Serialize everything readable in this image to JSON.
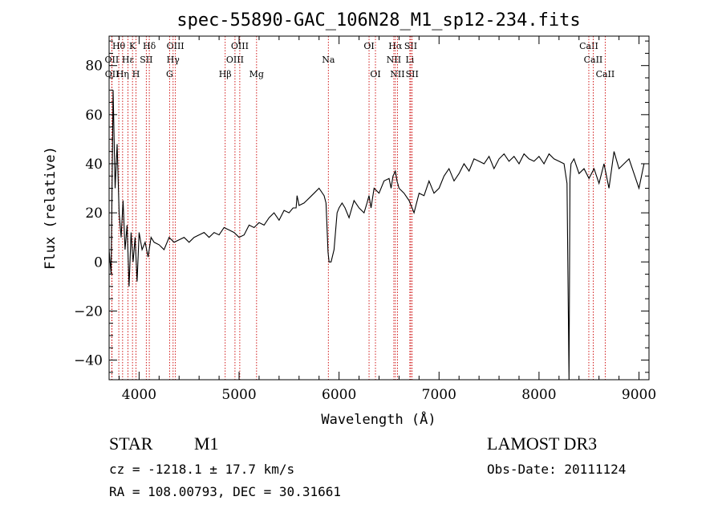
{
  "chart_data": {
    "type": "line",
    "title": "spec-55890-GAC_106N28_M1_sp12-234.fits",
    "xlabel": "Wavelength (Å)",
    "ylabel": "Flux (relative)",
    "xlim": [
      3700,
      9100
    ],
    "ylim": [
      -48,
      92
    ],
    "xticks": [
      4000,
      5000,
      6000,
      7000,
      8000,
      9000
    ],
    "yticks": [
      -40,
      -20,
      0,
      20,
      40,
      60,
      80
    ],
    "grid": false,
    "legend": "none",
    "series": [
      {
        "x": [
          3700,
          3720,
          3740,
          3760,
          3780,
          3800,
          3820,
          3840,
          3860,
          3880,
          3900,
          3920,
          3940,
          3960,
          3980,
          4000,
          4030,
          4060,
          4090,
          4120,
          4150,
          4200,
          4250,
          4300,
          4350,
          4400,
          4450,
          4500,
          4550,
          4600,
          4650,
          4700,
          4750,
          4800,
          4850,
          4900,
          4950,
          5000,
          5050,
          5100,
          5150,
          5200,
          5250,
          5300,
          5350,
          5400,
          5450,
          5500,
          5540,
          5570,
          5580,
          5600,
          5650,
          5700,
          5750,
          5800,
          5850,
          5870,
          5890,
          5900,
          5920,
          5950,
          5980,
          6000,
          6030,
          6060,
          6100,
          6150,
          6200,
          6250,
          6280,
          6300,
          6320,
          6350,
          6400,
          6450,
          6500,
          6520,
          6540,
          6563,
          6580,
          6600,
          6650,
          6700,
          6750,
          6800,
          6850,
          6900,
          6950,
          7000,
          7050,
          7100,
          7150,
          7200,
          7250,
          7300,
          7350,
          7400,
          7450,
          7500,
          7550,
          7600,
          7650,
          7700,
          7750,
          7800,
          7850,
          7900,
          7950,
          8000,
          8050,
          8100,
          8150,
          8200,
          8250,
          8280,
          8300,
          8310,
          8320,
          8350,
          8400,
          8450,
          8500,
          8550,
          8600,
          8650,
          8700,
          8750,
          8800,
          8850,
          8900,
          8950,
          9000,
          9050
        ],
        "y": [
          5,
          -5,
          70,
          30,
          48,
          20,
          10,
          25,
          5,
          15,
          -10,
          12,
          0,
          10,
          -8,
          12,
          5,
          8,
          2,
          10,
          8,
          7,
          5,
          10,
          8,
          9,
          10,
          8,
          10,
          11,
          12,
          10,
          12,
          11,
          14,
          13,
          12,
          10,
          11,
          15,
          14,
          16,
          15,
          18,
          20,
          17,
          21,
          20,
          22,
          22,
          27,
          23,
          24,
          26,
          28,
          30,
          27,
          24,
          4,
          0,
          0,
          5,
          20,
          22,
          24,
          22,
          18,
          25,
          22,
          20,
          24,
          27,
          22,
          30,
          28,
          33,
          34,
          30,
          35,
          37,
          33,
          30,
          28,
          25,
          20,
          28,
          27,
          33,
          28,
          30,
          35,
          38,
          33,
          36,
          40,
          37,
          42,
          41,
          40,
          43,
          38,
          42,
          44,
          41,
          43,
          40,
          44,
          42,
          41,
          43,
          40,
          44,
          42,
          41,
          40,
          32,
          -48,
          34,
          40,
          42,
          36,
          38,
          34,
          38,
          32,
          40,
          30,
          45,
          38,
          40,
          42,
          36,
          30,
          40
        ]
      }
    ],
    "line_markers": [
      {
        "label": "Hθ",
        "x": 3797,
        "row": 0
      },
      {
        "label": "OII",
        "x": 3727,
        "row": 1
      },
      {
        "label": "OII",
        "x": 3729,
        "row": 2
      },
      {
        "label": "Hε",
        "x": 3889,
        "row": 1
      },
      {
        "label": "Hη",
        "x": 3835,
        "row": 2
      },
      {
        "label": "K",
        "x": 3934,
        "row": 0
      },
      {
        "label": "H",
        "x": 3969,
        "row": 2
      },
      {
        "label": "SII",
        "x": 4072,
        "row": 1
      },
      {
        "label": "Hδ",
        "x": 4102,
        "row": 0
      },
      {
        "label": "OIII",
        "x": 4363,
        "row": 0
      },
      {
        "label": "Hγ",
        "x": 4340,
        "row": 1
      },
      {
        "label": "G",
        "x": 4305,
        "row": 2
      },
      {
        "label": "OIII",
        "x": 5007,
        "row": 0
      },
      {
        "label": "OIII",
        "x": 4959,
        "row": 1
      },
      {
        "label": "Hβ",
        "x": 4861,
        "row": 2
      },
      {
        "label": "Mg",
        "x": 5175,
        "row": 2
      },
      {
        "label": "Na",
        "x": 5893,
        "row": 1
      },
      {
        "label": "OI",
        "x": 6300,
        "row": 0
      },
      {
        "label": "OI",
        "x": 6364,
        "row": 2
      },
      {
        "label": "Hα",
        "x": 6563,
        "row": 0
      },
      {
        "label": "NII",
        "x": 6548,
        "row": 1
      },
      {
        "label": "NII",
        "x": 6584,
        "row": 2
      },
      {
        "label": "SII",
        "x": 6717,
        "row": 0
      },
      {
        "label": "Li",
        "x": 6708,
        "row": 1
      },
      {
        "label": "SII",
        "x": 6731,
        "row": 2
      },
      {
        "label": "CaII",
        "x": 8498,
        "row": 0
      },
      {
        "label": "CaII",
        "x": 8542,
        "row": 1
      },
      {
        "label": "CaII",
        "x": 8662,
        "row": 2
      }
    ]
  },
  "info": {
    "object_class": "STAR",
    "subclass": "M1",
    "survey": "LAMOST DR3",
    "cz": "cz = -1218.1 ± 17.7 km/s",
    "obs_date": "Obs-Date: 20111124",
    "coords": "RA = 108.00793, DEC =  30.31661"
  },
  "colors": {
    "line": "#000000",
    "marker": "#cc0000",
    "background": "#ffffff"
  }
}
